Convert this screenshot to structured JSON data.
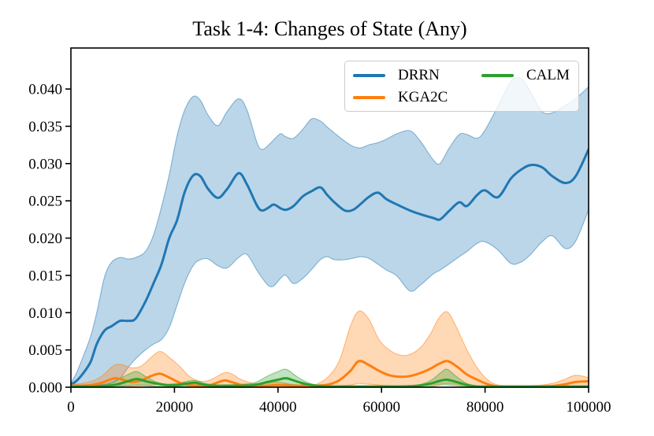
{
  "title": "Task 1-4: Changes of State (Any)",
  "legend": {
    "items": [
      {
        "label": "DRRN",
        "color": "#1f77b4"
      },
      {
        "label": "KGA2C",
        "color": "#ff7f0e"
      },
      {
        "label": "CALM",
        "color": "#2ca02c"
      }
    ]
  },
  "chart_data": {
    "type": "line",
    "title": "Task 1-4: Changes of State (Any)",
    "xlabel": "",
    "ylabel": "",
    "xlim": [
      0,
      100000
    ],
    "ylim": [
      0,
      0.0455
    ],
    "grid": false,
    "legend_position": "upper right",
    "band_alpha": 0.3,
    "band_edge_alpha": 0.5,
    "x_ticks": {
      "values": [
        0,
        20000,
        40000,
        60000,
        80000,
        100000
      ],
      "labels": [
        "0",
        "20000",
        "40000",
        "60000",
        "80000",
        "100000"
      ]
    },
    "y_ticks": {
      "values": [
        0.0,
        0.005,
        0.01,
        0.015,
        0.02,
        0.025,
        0.03,
        0.035,
        0.04
      ],
      "labels": [
        "0.000",
        "0.005",
        "0.010",
        "0.015",
        "0.020",
        "0.025",
        "0.030",
        "0.035",
        "0.040"
      ]
    },
    "series": [
      {
        "name": "DRRN",
        "color": "#1f77b4",
        "x": [
          0,
          1000,
          2300,
          3800,
          5000,
          6500,
          7900,
          9500,
          11000,
          12500,
          14400,
          16000,
          17500,
          19000,
          20500,
          22000,
          23600,
          25000,
          26500,
          28400,
          30200,
          32400,
          34000,
          36000,
          37000,
          38200,
          39200,
          40500,
          41500,
          43000,
          44800,
          46500,
          48200,
          49500,
          50900,
          52900,
          54500,
          56000,
          57500,
          59300,
          61000,
          63000,
          65500,
          67500,
          70000,
          71300,
          73000,
          75000,
          76500,
          78500,
          80000,
          82500,
          85000,
          87000,
          88800,
          91000,
          93000,
          95500,
          97500,
          100000
        ],
        "mean": [
          0.0004,
          0.0008,
          0.0018,
          0.0034,
          0.0058,
          0.0076,
          0.0082,
          0.0089,
          0.0089,
          0.0092,
          0.0115,
          0.014,
          0.0165,
          0.02,
          0.0224,
          0.0262,
          0.0284,
          0.0283,
          0.0266,
          0.0254,
          0.0266,
          0.0287,
          0.0272,
          0.0243,
          0.0237,
          0.0241,
          0.0245,
          0.024,
          0.0238,
          0.0243,
          0.0256,
          0.0263,
          0.0268,
          0.0258,
          0.0248,
          0.0237,
          0.0238,
          0.0246,
          0.0255,
          0.0261,
          0.0252,
          0.0245,
          0.0237,
          0.0232,
          0.0227,
          0.0225,
          0.0236,
          0.0248,
          0.0243,
          0.0258,
          0.0264,
          0.0255,
          0.028,
          0.0292,
          0.0298,
          0.0295,
          0.0283,
          0.0274,
          0.0283,
          0.0319
        ],
        "lower": [
          0.0001,
          0.0001,
          0.0002,
          0.0002,
          0.0003,
          0.0004,
          0.0006,
          0.0012,
          0.0026,
          0.0038,
          0.005,
          0.0058,
          0.0064,
          0.008,
          0.011,
          0.014,
          0.0163,
          0.0171,
          0.0172,
          0.0163,
          0.016,
          0.0174,
          0.0178,
          0.0156,
          0.0146,
          0.0136,
          0.0136,
          0.0146,
          0.015,
          0.0139,
          0.0146,
          0.0158,
          0.0171,
          0.0175,
          0.0171,
          0.0171,
          0.0173,
          0.0175,
          0.0173,
          0.0165,
          0.0157,
          0.0149,
          0.0129,
          0.0137,
          0.0152,
          0.0157,
          0.0165,
          0.0175,
          0.0182,
          0.0193,
          0.0195,
          0.0184,
          0.0166,
          0.0168,
          0.0178,
          0.0195,
          0.0203,
          0.0186,
          0.0196,
          0.0238
        ],
        "upper": [
          0.0006,
          0.0018,
          0.004,
          0.0068,
          0.01,
          0.0148,
          0.0168,
          0.0174,
          0.0172,
          0.0174,
          0.0182,
          0.0205,
          0.0242,
          0.0285,
          0.0337,
          0.0372,
          0.039,
          0.0385,
          0.0365,
          0.0351,
          0.037,
          0.0387,
          0.0372,
          0.0327,
          0.0319,
          0.0325,
          0.0332,
          0.034,
          0.0336,
          0.0334,
          0.0346,
          0.036,
          0.0357,
          0.0349,
          0.0341,
          0.033,
          0.0323,
          0.0321,
          0.0325,
          0.0328,
          0.0333,
          0.034,
          0.0344,
          0.033,
          0.0305,
          0.03,
          0.032,
          0.0339,
          0.0339,
          0.0334,
          0.0345,
          0.0377,
          0.041,
          0.0414,
          0.0396,
          0.037,
          0.0368,
          0.0378,
          0.0387,
          0.0403
        ]
      },
      {
        "name": "KGA2C",
        "color": "#ff7f0e",
        "x": [
          0,
          2000,
          4000,
          6000,
          8500,
          10500,
          11700,
          13500,
          15500,
          17200,
          19000,
          21000,
          23000,
          25000,
          27000,
          29500,
          31000,
          33000,
          35500,
          38000,
          40000,
          42500,
          45000,
          47500,
          50000,
          52000,
          54000,
          55600,
          57500,
          59500,
          61500,
          63600,
          65500,
          67500,
          69500,
          71000,
          72700,
          74500,
          76500,
          78500,
          80500,
          82500,
          85000,
          88000,
          91000,
          93500,
          95500,
          97500,
          100000
        ],
        "mean": [
          0.0002,
          0.0002,
          0.0003,
          0.0006,
          0.0012,
          0.0009,
          0.0007,
          0.0009,
          0.0015,
          0.0018,
          0.0013,
          0.0006,
          0.0003,
          0.0002,
          0.0003,
          0.0009,
          0.0007,
          0.0003,
          0.0002,
          0.0002,
          0.0003,
          0.0002,
          0.0002,
          0.0002,
          0.0004,
          0.001,
          0.0022,
          0.0035,
          0.003,
          0.0022,
          0.0016,
          0.0014,
          0.0015,
          0.0019,
          0.0025,
          0.0031,
          0.0035,
          0.0028,
          0.0017,
          0.001,
          0.0004,
          0.0001,
          0.0001,
          0.0001,
          0.0001,
          0.0002,
          0.0004,
          0.0007,
          0.0008
        ],
        "lower": [
          0.0,
          0.0,
          0.0001,
          0.0001,
          0.0002,
          0.0002,
          0.0001,
          0.0002,
          0.0003,
          0.0004,
          0.0002,
          0.0001,
          0.0,
          0.0,
          0.0,
          0.0001,
          0.0001,
          0.0,
          0.0,
          0.0,
          0.0,
          0.0,
          0.0,
          0.0,
          0.0001,
          0.0002,
          0.0003,
          0.0005,
          0.0004,
          0.0003,
          0.0002,
          0.0002,
          0.0002,
          0.0002,
          0.0003,
          0.0004,
          0.0005,
          0.0004,
          0.0002,
          0.0001,
          0.0,
          0.0,
          0.0,
          0.0,
          0.0,
          0.0,
          0.0001,
          0.0001,
          0.0001
        ],
        "upper": [
          0.0004,
          0.0005,
          0.0008,
          0.0015,
          0.003,
          0.0029,
          0.0026,
          0.0028,
          0.004,
          0.0048,
          0.004,
          0.0028,
          0.0014,
          0.0008,
          0.001,
          0.0019,
          0.0018,
          0.001,
          0.0005,
          0.0006,
          0.0007,
          0.0004,
          0.0003,
          0.0004,
          0.0016,
          0.0038,
          0.0082,
          0.0102,
          0.0092,
          0.0064,
          0.005,
          0.0043,
          0.0044,
          0.0053,
          0.0072,
          0.0092,
          0.0101,
          0.008,
          0.005,
          0.0026,
          0.001,
          0.0003,
          0.0002,
          0.0002,
          0.0003,
          0.0006,
          0.0011,
          0.0016,
          0.0013
        ]
      },
      {
        "name": "CALM",
        "color": "#2ca02c",
        "x": [
          0,
          4000,
          7000,
          9000,
          11000,
          12700,
          14500,
          16500,
          18500,
          20500,
          22500,
          24000,
          26000,
          28000,
          30000,
          33000,
          35500,
          38000,
          40000,
          41600,
          43500,
          45500,
          47500,
          50000,
          55000,
          60000,
          64000,
          67000,
          69500,
          71500,
          72700,
          74500,
          76500,
          78500,
          82000,
          90000,
          100000
        ],
        "mean": [
          0.0001,
          0.0001,
          0.0002,
          0.0004,
          0.0008,
          0.0011,
          0.0008,
          0.0005,
          0.0003,
          0.0003,
          0.0005,
          0.0006,
          0.0003,
          0.0002,
          0.0002,
          0.0002,
          0.0003,
          0.0007,
          0.001,
          0.0012,
          0.0008,
          0.0004,
          0.0002,
          0.0001,
          0.0001,
          0.0001,
          0.0001,
          0.0002,
          0.0005,
          0.0009,
          0.001,
          0.0007,
          0.0003,
          0.0001,
          0.0001,
          0.0001,
          0.0001
        ],
        "lower": [
          0.0,
          0.0,
          0.0001,
          0.0001,
          0.0002,
          0.0003,
          0.0002,
          0.0001,
          0.0001,
          0.0001,
          0.0001,
          0.0002,
          0.0001,
          0.0,
          0.0,
          0.0,
          0.0001,
          0.0002,
          0.0003,
          0.0004,
          0.0002,
          0.0001,
          0.0,
          0.0,
          0.0,
          0.0,
          0.0,
          0.0,
          0.0001,
          0.0003,
          0.0003,
          0.0002,
          0.0001,
          0.0,
          0.0,
          0.0,
          0.0
        ],
        "upper": [
          0.0002,
          0.0002,
          0.0004,
          0.001,
          0.0017,
          0.0021,
          0.0014,
          0.0007,
          0.0004,
          0.0005,
          0.0008,
          0.0009,
          0.0005,
          0.0003,
          0.0003,
          0.0004,
          0.0006,
          0.0015,
          0.0021,
          0.0024,
          0.0015,
          0.0007,
          0.0003,
          0.0002,
          0.0002,
          0.0002,
          0.0002,
          0.0003,
          0.0009,
          0.002,
          0.0024,
          0.0014,
          0.0005,
          0.0002,
          0.0001,
          0.0001,
          0.0002
        ]
      }
    ]
  }
}
